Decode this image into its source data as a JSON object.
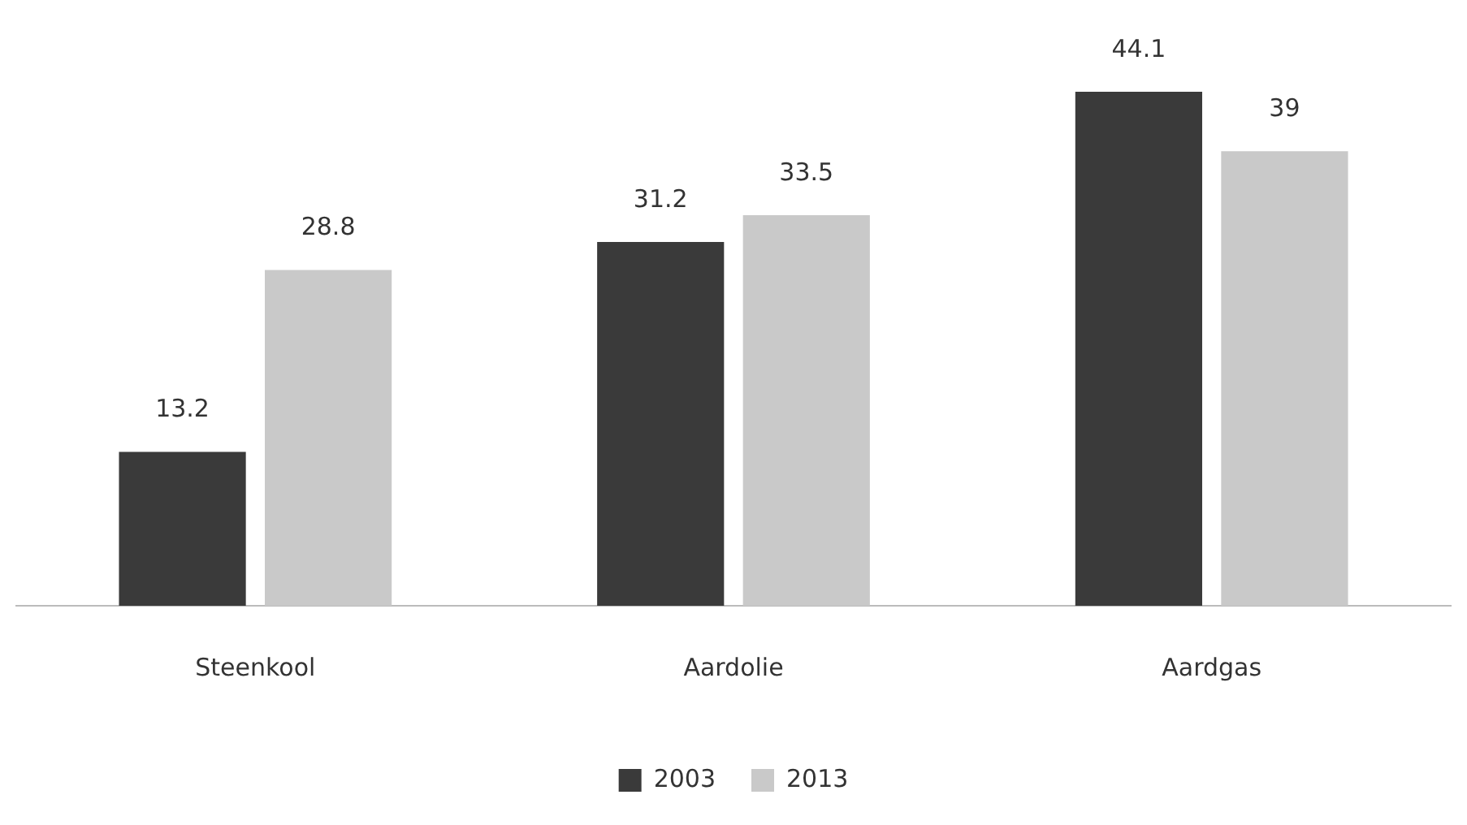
{
  "chart_data": {
    "type": "bar",
    "categories": [
      "Steenkool",
      "Aardolie",
      "Aardgas"
    ],
    "series": [
      {
        "name": "2003",
        "color": "#3a3a3a",
        "values": [
          13.2,
          31.2,
          44.1
        ]
      },
      {
        "name": "2013",
        "color": "#c9c9c9",
        "values": [
          28.8,
          33.5,
          39
        ]
      }
    ],
    "data_labels": true,
    "legend": "bottom",
    "grid": false,
    "tick_labels": "x"
  }
}
